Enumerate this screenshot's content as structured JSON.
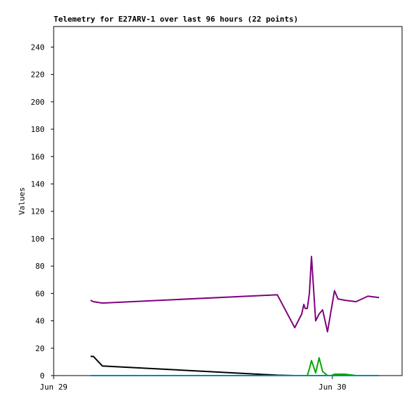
{
  "chart_data": {
    "type": "line",
    "title": "Telemetry for E27ARV-1 over last 96 hours (22 points)",
    "y_label": "Values",
    "x": [
      3.18,
      3.42,
      4.2,
      19.26,
      20.76,
      21.36,
      21.54,
      21.66,
      21.84,
      22.02,
      22.2,
      22.56,
      22.86,
      23.16,
      23.58,
      23.88,
      24.18,
      24.48,
      25.08,
      26.04,
      27.06,
      28.02
    ],
    "xlim": [
      0,
      30
    ],
    "xticks": [
      {
        "value": 0,
        "label": "Jun 29"
      },
      {
        "value": 24,
        "label": "Jun 30"
      }
    ],
    "ylim": [
      0,
      255
    ],
    "yticks": [
      0,
      20,
      40,
      60,
      80,
      100,
      120,
      140,
      160,
      180,
      200,
      220,
      240
    ],
    "series": [
      {
        "color": "#800080",
        "values": [
          55,
          54,
          53,
          59,
          35,
          45,
          52,
          49,
          49,
          60,
          87,
          40,
          45,
          48,
          32,
          47,
          62,
          56,
          55,
          54,
          58,
          57
        ]
      },
      {
        "color": "#000000",
        "values": [
          14,
          14,
          7,
          0.3,
          0,
          0,
          0,
          0,
          0,
          0,
          0,
          0,
          0,
          0,
          0,
          0,
          0,
          0,
          0,
          0,
          0,
          0
        ]
      },
      {
        "color": "#00aa00",
        "values": [
          0,
          0,
          0,
          0,
          0,
          0,
          0,
          0,
          0,
          5,
          11,
          2,
          13,
          3,
          0,
          0,
          1,
          1,
          1,
          0,
          0,
          0
        ]
      },
      {
        "color": "#0088aa",
        "values": [
          0,
          0,
          0,
          0,
          0,
          0,
          0,
          0,
          0,
          0,
          0,
          0,
          0,
          0,
          0,
          0,
          0,
          0,
          0,
          0,
          0,
          0
        ]
      }
    ]
  }
}
